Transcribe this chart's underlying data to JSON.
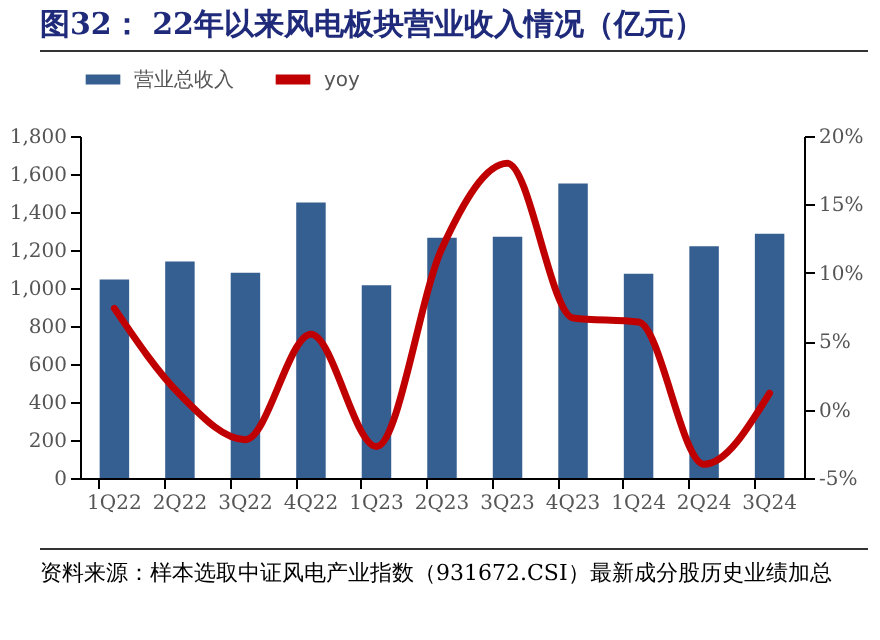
{
  "chart_data": {
    "type": "bar",
    "title": "图32：  22年以来风电板块营业收入情况（亿元）",
    "categories": [
      "1Q22",
      "2Q22",
      "3Q22",
      "4Q22",
      "1Q23",
      "2Q23",
      "3Q23",
      "4Q23",
      "1Q24",
      "2Q24",
      "3Q24"
    ],
    "series": [
      {
        "name": "营业总收入",
        "color": "#365f91",
        "values": [
          1045,
          1140,
          1080,
          1450,
          1015,
          1265,
          1270,
          1550,
          1075,
          1220,
          1285
        ]
      },
      {
        "name": "yoy",
        "type": "line",
        "axis": "y2",
        "color": "#c00000",
        "values": [
          7.4,
          1.1,
          -2.2,
          5.5,
          -2.7,
          11.8,
          18,
          6.7,
          6.4,
          -4,
          1.2
        ]
      }
    ],
    "ylim": [
      0,
      1800
    ],
    "yticks": [
      {
        "value": 0,
        "label": "0"
      },
      {
        "value": 200,
        "label": "200"
      },
      {
        "value": 400,
        "label": "400"
      },
      {
        "value": 600,
        "label": "600"
      },
      {
        "value": 800,
        "label": "800"
      },
      {
        "value": 1000,
        "label": "1,000"
      },
      {
        "value": 1200,
        "label": "1,200"
      },
      {
        "value": 1400,
        "label": "1,400"
      },
      {
        "value": 1600,
        "label": "1,600"
      },
      {
        "value": 1800,
        "label": "1,800"
      }
    ],
    "y2lim": [
      -5,
      20
    ],
    "y2ticks": [
      {
        "value": -5,
        "label": "-5%"
      },
      {
        "value": 0,
        "label": "0%"
      },
      {
        "value": 5,
        "label": "5%"
      },
      {
        "value": 10,
        "label": "10%"
      },
      {
        "value": 15,
        "label": "15%"
      },
      {
        "value": 20,
        "label": "20%"
      }
    ],
    "legend": "top",
    "grid": false,
    "marker": "none",
    "line_style": "solid",
    "annotations": [
      "资料来源：样本选取中证风电产业指数（931672.CSI）最新成分股历史业绩加总"
    ]
  }
}
